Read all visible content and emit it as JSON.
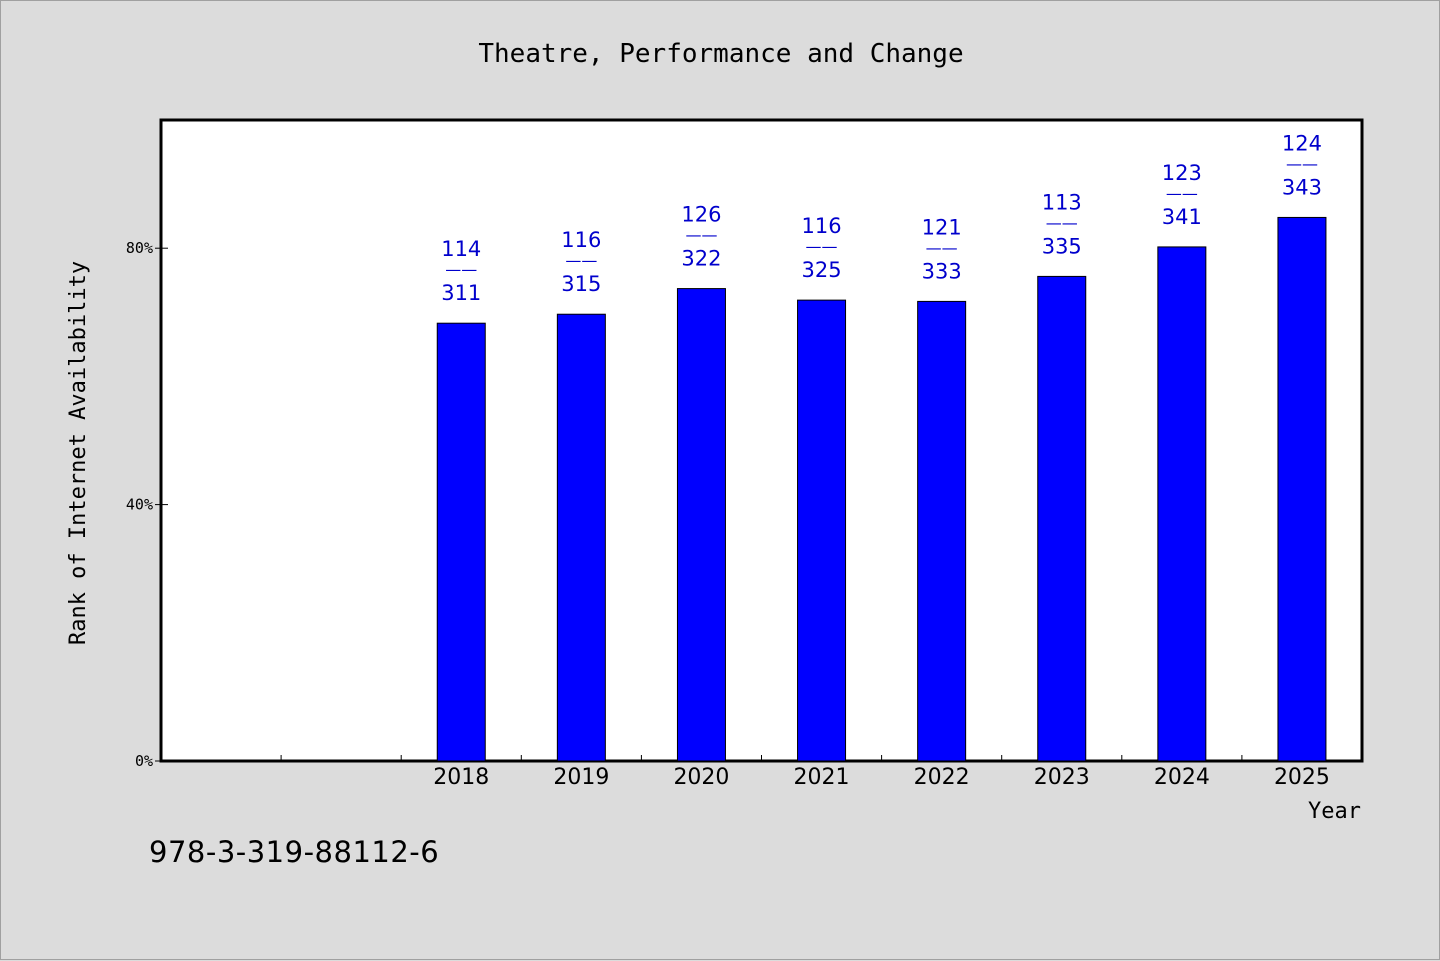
{
  "chart_data": {
    "type": "bar",
    "title": "Theatre, Performance and Change",
    "xlabel": "Year",
    "ylabel": "Rank of Internet Availability",
    "categories": [
      "2018",
      "2019",
      "2020",
      "2021",
      "2022",
      "2023",
      "2024",
      "2025"
    ],
    "values": [
      68.3,
      69.7,
      73.7,
      71.9,
      71.7,
      75.6,
      80.2,
      84.8
    ],
    "labels_top": [
      "114",
      "116",
      "126",
      "116",
      "121",
      "113",
      "123",
      "124"
    ],
    "labels_bottom": [
      "311",
      "315",
      "322",
      "325",
      "333",
      "335",
      "341",
      "343"
    ],
    "label_separator": "——",
    "ylim": [
      0,
      100
    ],
    "yticks": [
      0,
      40,
      80
    ],
    "ytick_labels": [
      "0%",
      "40%",
      "80%"
    ],
    "bar_color": "#0000ff",
    "label_color": "#0000cc",
    "grid": false
  },
  "footer": {
    "isbn": "978-3-319-88112-6"
  }
}
